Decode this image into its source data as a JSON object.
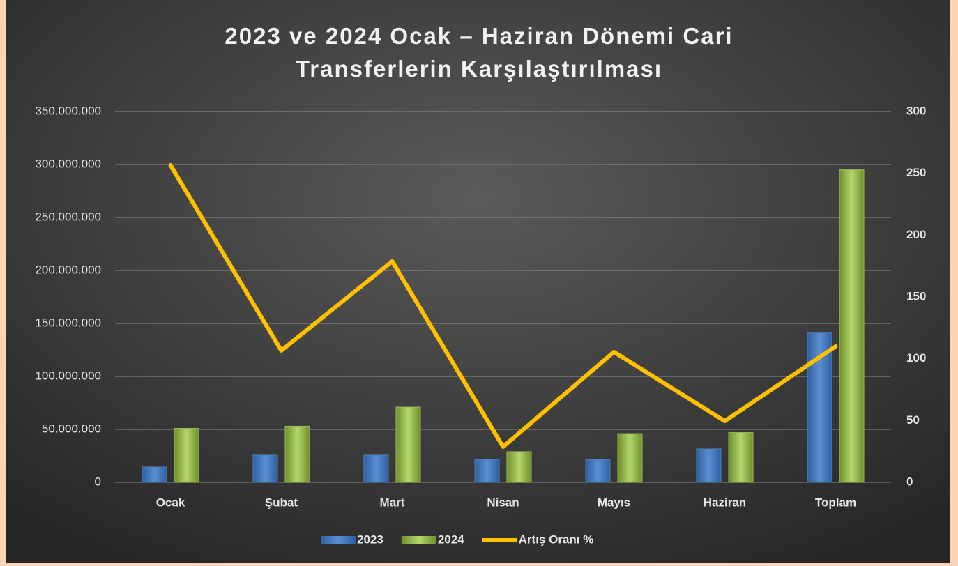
{
  "chart_data": {
    "type": "bar",
    "title": "2023 ve 2024 Ocak – Haziran Dönemi Cari Transferlerin Karşılaştırılması",
    "categories": [
      "Ocak",
      "Şubat",
      "Mart",
      "Nisan",
      "Mayıs",
      "Haziran",
      "Toplam"
    ],
    "series": [
      {
        "name": "2023",
        "type": "bar",
        "color": "#4f81bd",
        "values": [
          14500000,
          25700000,
          25700000,
          21700000,
          21700000,
          31600000,
          141000000
        ]
      },
      {
        "name": "2024",
        "type": "bar",
        "color": "#9bbb59",
        "values": [
          51000000,
          53000000,
          71000000,
          29000000,
          46000000,
          47000000,
          295000000
        ]
      },
      {
        "name": "Artış Oranı %",
        "type": "line",
        "axis": "y2",
        "color": "#ffc000",
        "values": [
          256.6,
          106.6,
          178.8,
          28.8,
          105.5,
          49.6,
          110
        ]
      }
    ],
    "ylim": [
      0,
      350000000
    ],
    "yticks": [
      0,
      {
        "value": 50000000,
        "label": "50.000.000"
      },
      {
        "value": 100000000,
        "label": "100.000.000"
      },
      {
        "value": 150000000,
        "label": "150.000.000"
      },
      {
        "value": 200000000,
        "label": "200.000.000"
      },
      {
        "value": 250000000,
        "label": "250.000.000"
      },
      {
        "value": 300000000,
        "label": "300.000.000"
      },
      {
        "value": 350000000,
        "label": "350.000.000"
      }
    ],
    "y2lim": [
      0,
      300
    ],
    "y2ticks": [
      0,
      50,
      100,
      150,
      200,
      250,
      300
    ],
    "grid": true,
    "legend": "bottom"
  }
}
